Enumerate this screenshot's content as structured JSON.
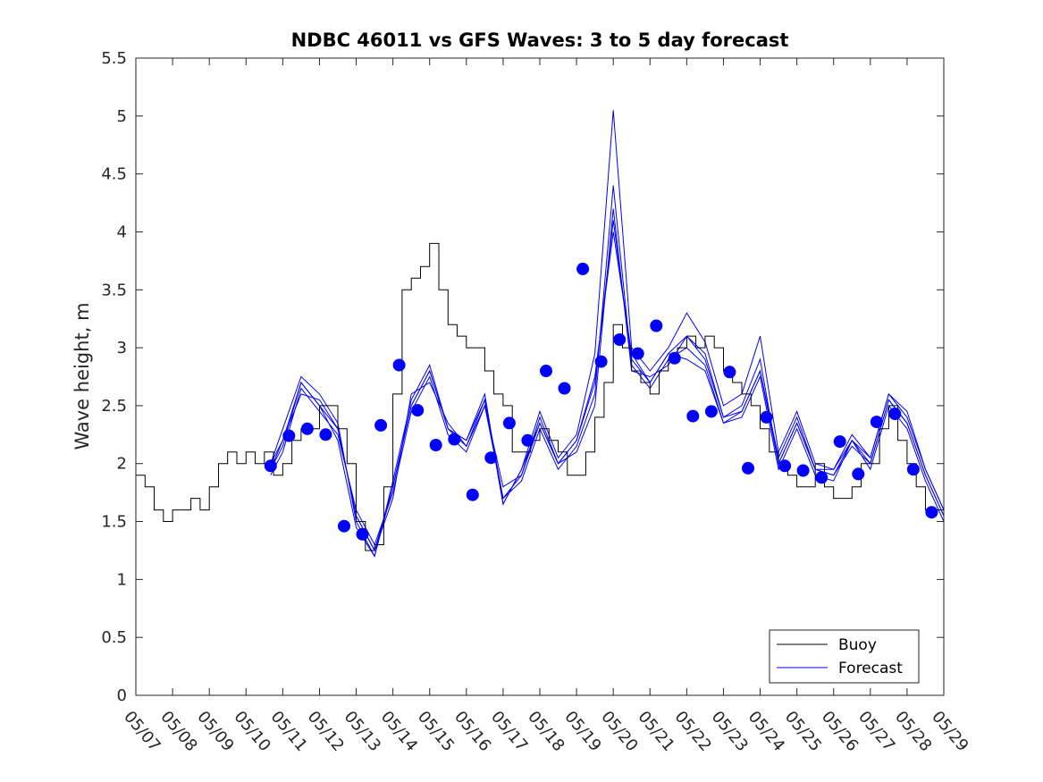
{
  "chart_data": {
    "type": "line",
    "title": "NDBC 46011 vs GFS Waves: 3 to 5 day forecast",
    "xlabel": "",
    "ylabel": "Wave height, m",
    "xlim": [
      0,
      22
    ],
    "ylim": [
      0,
      5.5
    ],
    "x_unit": "days from 05/07 00:00",
    "xtick_labels": [
      "05/07",
      "05/08",
      "05/09",
      "05/10",
      "05/11",
      "05/12",
      "05/13",
      "05/14",
      "05/15",
      "05/16",
      "05/17",
      "05/18",
      "05/19",
      "05/20",
      "05/21",
      "05/22",
      "05/23",
      "05/24",
      "05/25",
      "05/26",
      "05/27",
      "05/28",
      "05/29"
    ],
    "ytick_labels": [
      "0",
      "0.5",
      "1",
      "1.5",
      "2",
      "2.5",
      "3",
      "3.5",
      "4",
      "4.5",
      "5",
      "5.5"
    ],
    "grid": false,
    "legend_position": "bottom-right",
    "series": [
      {
        "name": "Buoy",
        "color": "#000000",
        "x": [
          0.0,
          0.25,
          0.5,
          0.75,
          1.0,
          1.25,
          1.5,
          1.75,
          2.0,
          2.25,
          2.5,
          2.75,
          3.0,
          3.25,
          3.5,
          3.75,
          4.0,
          4.25,
          4.5,
          4.75,
          5.0,
          5.25,
          5.5,
          5.75,
          6.0,
          6.25,
          6.5,
          6.75,
          7.0,
          7.25,
          7.5,
          7.75,
          8.0,
          8.25,
          8.5,
          8.75,
          9.0,
          9.25,
          9.5,
          9.75,
          10.0,
          10.25,
          10.5,
          10.75,
          11.0,
          11.25,
          11.5,
          11.75,
          12.0,
          12.25,
          12.5,
          12.75,
          13.0,
          13.25,
          13.5,
          13.75,
          14.0,
          14.25,
          14.5,
          14.75,
          15.0,
          15.25,
          15.5,
          15.75,
          16.0,
          16.25,
          16.5,
          16.75,
          17.0,
          17.25,
          17.5,
          17.75,
          18.0,
          18.25,
          18.5,
          18.75,
          19.0,
          19.25,
          19.5,
          19.75,
          20.0,
          20.25,
          20.5,
          20.75,
          21.0,
          21.25,
          21.5,
          21.75,
          22.0
        ],
        "values": [
          1.9,
          1.8,
          1.6,
          1.5,
          1.6,
          1.6,
          1.7,
          1.6,
          1.8,
          2.0,
          2.1,
          2.0,
          2.1,
          2.0,
          2.1,
          1.9,
          2.0,
          2.2,
          2.3,
          2.3,
          2.5,
          2.5,
          2.3,
          2.0,
          1.5,
          1.25,
          1.3,
          1.8,
          2.6,
          3.5,
          3.6,
          3.7,
          3.9,
          3.5,
          3.2,
          3.1,
          3.0,
          3.0,
          2.8,
          2.6,
          2.5,
          2.1,
          2.1,
          2.2,
          2.3,
          2.2,
          2.1,
          1.9,
          1.9,
          2.1,
          2.4,
          2.7,
          3.2,
          3.0,
          2.8,
          2.7,
          2.6,
          2.8,
          2.9,
          3.0,
          3.1,
          3.0,
          3.1,
          3.0,
          2.8,
          2.7,
          2.6,
          2.5,
          2.3,
          2.1,
          2.0,
          1.9,
          1.8,
          1.8,
          2.0,
          1.8,
          1.7,
          1.7,
          1.8,
          2.0,
          2.0,
          2.3,
          2.5,
          2.2,
          2.0,
          1.8,
          1.6,
          1.6,
          1.5
        ]
      },
      {
        "name": "Forecast",
        "color": "#0000ff",
        "x": [
          3.67,
          4.0,
          4.5,
          5.0,
          5.5,
          6.0,
          6.5,
          7.0,
          7.5,
          8.0,
          8.5,
          9.0,
          9.5,
          10.0,
          10.5,
          11.0,
          11.5,
          12.0,
          12.5,
          13.0,
          13.5,
          14.0,
          14.5,
          15.0,
          15.5,
          16.0,
          16.5,
          17.0,
          17.5,
          18.0,
          18.5,
          19.0,
          19.5,
          20.0,
          20.5,
          21.0,
          21.5,
          22.0
        ],
        "values": [
          1.95,
          2.15,
          2.7,
          2.5,
          2.3,
          1.55,
          1.25,
          1.8,
          2.5,
          2.8,
          2.3,
          2.15,
          2.55,
          1.7,
          1.9,
          2.35,
          2.0,
          2.2,
          2.7,
          4.1,
          2.9,
          2.7,
          2.95,
          3.1,
          2.9,
          2.4,
          2.45,
          2.8,
          2.0,
          2.35,
          1.95,
          1.9,
          2.2,
          2.0,
          2.55,
          2.35,
          1.9,
          1.55
        ]
      }
    ],
    "forecast_markers": {
      "x": [
        3.67,
        4.17,
        4.67,
        5.17,
        5.67,
        6.17,
        6.67,
        7.17,
        7.67,
        8.17,
        8.67,
        9.17,
        9.67,
        10.17,
        10.67,
        11.17,
        11.67,
        12.17,
        12.67,
        13.17,
        13.67,
        14.17,
        14.67,
        15.17,
        15.67,
        16.17,
        16.67,
        17.17,
        17.67,
        18.17,
        18.67,
        19.17,
        19.67,
        20.17,
        20.67,
        21.17,
        21.67
      ],
      "values": [
        1.98,
        2.24,
        2.3,
        2.25,
        1.46,
        1.39,
        2.33,
        2.85,
        2.46,
        2.16,
        2.21,
        1.73,
        2.05,
        2.35,
        2.2,
        2.8,
        2.65,
        3.68,
        2.88,
        3.07,
        2.95,
        3.19,
        2.91,
        2.41,
        2.45,
        2.79,
        1.96,
        2.4,
        1.98,
        1.94,
        1.88,
        2.19,
        1.91,
        2.36,
        2.43,
        1.95,
        1.58
      ]
    },
    "forecast_runs": [
      {
        "x": [
          3.67,
          4.0,
          4.5,
          5.0,
          5.5,
          6.0,
          6.5,
          7.0,
          7.5,
          8.0,
          8.5,
          9.0,
          9.5,
          10.0,
          10.5,
          11.0,
          11.5,
          12.0,
          12.5,
          13.0,
          13.5,
          14.0,
          14.5,
          15.0,
          15.5,
          16.0,
          16.5,
          17.0,
          17.5,
          18.0,
          18.5,
          19.0,
          19.5,
          20.0,
          20.5,
          21.0,
          21.5,
          22.0
        ],
        "values": [
          2.0,
          2.3,
          2.75,
          2.6,
          2.35,
          1.5,
          1.2,
          1.85,
          2.55,
          2.85,
          2.3,
          2.2,
          2.6,
          1.65,
          1.95,
          2.45,
          2.05,
          2.25,
          2.95,
          5.05,
          3.0,
          2.8,
          3.0,
          3.3,
          3.05,
          2.5,
          2.6,
          3.1,
          2.1,
          2.45,
          2.0,
          1.95,
          2.25,
          2.05,
          2.6,
          2.45,
          1.95,
          1.6
        ]
      },
      {
        "x": [
          3.67,
          4.0,
          4.5,
          5.0,
          5.5,
          6.0,
          6.5,
          7.0,
          7.5,
          8.0,
          8.5,
          9.0,
          9.5,
          10.0,
          10.5,
          11.0,
          11.5,
          12.0,
          12.5,
          13.0,
          13.5,
          14.0,
          14.5,
          15.0,
          15.5,
          16.0,
          16.5,
          17.0,
          17.5,
          18.0,
          18.5,
          19.0,
          19.5,
          20.0,
          20.5,
          21.0,
          21.5,
          22.0
        ],
        "values": [
          1.9,
          2.1,
          2.65,
          2.45,
          2.25,
          1.6,
          1.3,
          1.75,
          2.45,
          2.75,
          2.25,
          2.1,
          2.5,
          1.7,
          1.85,
          2.3,
          1.95,
          2.15,
          2.6,
          4.4,
          2.85,
          2.65,
          2.9,
          3.0,
          2.85,
          2.35,
          2.4,
          2.75,
          1.95,
          2.3,
          1.9,
          1.85,
          2.2,
          1.95,
          2.5,
          2.3,
          1.85,
          1.5
        ]
      },
      {
        "x": [
          3.67,
          4.0,
          4.5,
          5.0,
          5.5,
          6.0,
          6.5,
          7.0,
          7.5,
          8.0,
          8.5,
          9.0,
          9.5,
          10.0,
          10.5,
          11.0,
          11.5,
          12.0,
          12.5,
          13.0,
          13.5,
          14.0,
          14.5,
          15.0,
          15.5,
          16.0,
          16.5,
          17.0,
          17.5,
          18.0,
          18.5,
          19.0,
          19.5,
          20.0,
          20.5,
          21.0,
          21.5,
          22.0
        ],
        "values": [
          1.95,
          2.2,
          2.6,
          2.55,
          2.3,
          1.55,
          1.25,
          1.7,
          2.6,
          2.7,
          2.35,
          2.15,
          2.5,
          1.8,
          1.9,
          2.4,
          2.0,
          2.1,
          2.5,
          4.2,
          2.8,
          2.75,
          2.85,
          3.1,
          2.95,
          2.4,
          2.5,
          2.9,
          2.0,
          2.35,
          1.95,
          1.9,
          2.15,
          2.0,
          2.55,
          2.35,
          1.9,
          1.55
        ]
      },
      {
        "x": [
          3.67,
          4.0,
          4.5,
          5.0,
          5.5,
          6.0,
          6.5,
          7.0,
          7.5,
          8.0,
          8.5,
          9.0,
          9.5,
          10.0,
          10.5,
          11.0,
          11.5,
          12.0,
          12.5,
          13.0,
          13.5,
          14.0,
          14.5,
          15.0,
          15.5,
          16.0,
          16.5,
          17.0,
          17.5,
          18.0,
          18.5,
          19.0,
          19.5,
          20.0,
          20.5,
          21.0,
          21.5,
          22.0
        ],
        "values": [
          2.0,
          2.2,
          2.7,
          2.5,
          2.2,
          1.45,
          1.2,
          1.8,
          2.5,
          2.8,
          2.3,
          2.2,
          2.55,
          1.65,
          1.95,
          2.35,
          2.0,
          2.2,
          2.75,
          4.0,
          2.95,
          2.7,
          2.95,
          2.9,
          2.8,
          2.35,
          2.45,
          2.8,
          2.05,
          2.4,
          1.95,
          1.95,
          2.2,
          2.05,
          2.6,
          2.4,
          1.95,
          1.6
        ]
      }
    ]
  }
}
